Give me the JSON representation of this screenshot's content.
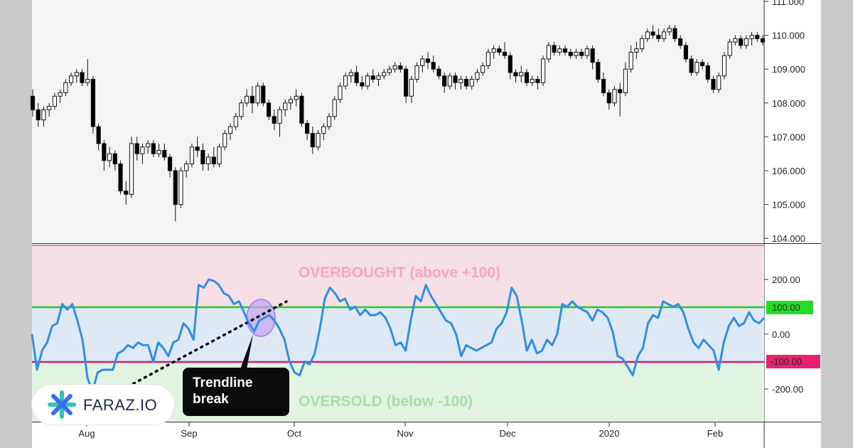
{
  "chart_data": [
    {
      "type": "candlestick",
      "y_ticks": [
        "111.000",
        "110.000",
        "109.000",
        "108.000",
        "107.000",
        "106.000",
        "105.000",
        "104.000"
      ],
      "ylim": [
        104.0,
        111.0
      ],
      "x_ticks": [
        "Aug",
        "Sep",
        "Oct",
        "Nov",
        "Dec",
        "2020",
        "Feb"
      ],
      "candles": [
        [
          108.2,
          108.4,
          107.6,
          107.8
        ],
        [
          107.8,
          108.0,
          107.3,
          107.5
        ],
        [
          107.5,
          107.9,
          107.3,
          107.8
        ],
        [
          107.8,
          108.0,
          107.6,
          107.9
        ],
        [
          107.9,
          108.3,
          107.8,
          108.2
        ],
        [
          108.2,
          108.4,
          108.0,
          108.3
        ],
        [
          108.3,
          108.7,
          108.2,
          108.6
        ],
        [
          108.6,
          108.9,
          108.5,
          108.8
        ],
        [
          108.8,
          109.0,
          108.6,
          108.9
        ],
        [
          108.9,
          109.0,
          108.5,
          108.6
        ],
        [
          108.6,
          109.3,
          108.5,
          108.7
        ],
        [
          108.7,
          108.8,
          107.1,
          107.3
        ],
        [
          107.3,
          107.4,
          106.6,
          106.8
        ],
        [
          106.8,
          106.9,
          106.0,
          106.3
        ],
        [
          106.3,
          106.7,
          106.1,
          106.5
        ],
        [
          106.5,
          106.6,
          106.0,
          106.2
        ],
        [
          106.2,
          106.3,
          105.3,
          105.4
        ],
        [
          105.4,
          105.7,
          105.0,
          105.3
        ],
        [
          105.3,
          107.0,
          105.2,
          106.8
        ],
        [
          106.8,
          107.0,
          106.3,
          106.5
        ],
        [
          106.5,
          106.8,
          106.2,
          106.7
        ],
        [
          106.7,
          106.9,
          106.5,
          106.8
        ],
        [
          106.8,
          106.9,
          106.4,
          106.5
        ],
        [
          106.5,
          106.8,
          106.4,
          106.6
        ],
        [
          106.6,
          106.8,
          106.3,
          106.4
        ],
        [
          106.4,
          106.5,
          105.8,
          106.0
        ],
        [
          106.0,
          106.1,
          104.5,
          105.0
        ],
        [
          105.0,
          106.1,
          104.9,
          106.0
        ],
        [
          106.0,
          106.3,
          105.8,
          106.2
        ],
        [
          106.2,
          106.8,
          106.1,
          106.7
        ],
        [
          106.7,
          107.0,
          106.4,
          106.6
        ],
        [
          106.6,
          106.8,
          106.0,
          106.2
        ],
        [
          106.2,
          106.5,
          106.0,
          106.4
        ],
        [
          106.4,
          106.7,
          106.1,
          106.2
        ],
        [
          106.2,
          106.8,
          106.1,
          106.7
        ],
        [
          106.7,
          107.2,
          106.6,
          107.1
        ],
        [
          107.1,
          107.4,
          106.9,
          107.3
        ],
        [
          107.3,
          107.7,
          107.2,
          107.6
        ],
        [
          107.6,
          108.1,
          107.5,
          108.0
        ],
        [
          108.0,
          108.4,
          107.9,
          108.2
        ],
        [
          108.2,
          108.5,
          107.7,
          108.0
        ],
        [
          108.0,
          108.6,
          107.9,
          108.5
        ],
        [
          108.5,
          108.6,
          107.9,
          108.0
        ],
        [
          108.0,
          108.1,
          107.5,
          107.6
        ],
        [
          107.6,
          107.8,
          107.2,
          107.4
        ],
        [
          107.4,
          107.9,
          107.0,
          107.8
        ],
        [
          107.8,
          108.1,
          107.6,
          108.0
        ],
        [
          108.0,
          108.2,
          107.8,
          108.1
        ],
        [
          108.1,
          108.4,
          107.9,
          108.2
        ],
        [
          108.2,
          108.3,
          107.3,
          107.4
        ],
        [
          107.4,
          107.5,
          106.9,
          107.1
        ],
        [
          107.1,
          107.3,
          106.5,
          106.7
        ],
        [
          106.7,
          107.2,
          106.6,
          107.1
        ],
        [
          107.1,
          107.4,
          106.9,
          107.3
        ],
        [
          107.3,
          107.7,
          107.2,
          107.6
        ],
        [
          107.6,
          108.2,
          107.5,
          108.1
        ],
        [
          108.1,
          108.6,
          108.0,
          108.5
        ],
        [
          108.5,
          108.9,
          108.4,
          108.8
        ],
        [
          108.8,
          109.0,
          108.6,
          108.9
        ],
        [
          108.9,
          109.1,
          108.5,
          108.6
        ],
        [
          108.6,
          108.8,
          108.4,
          108.5
        ],
        [
          108.5,
          108.9,
          108.4,
          108.8
        ],
        [
          108.8,
          109.0,
          108.6,
          108.7
        ],
        [
          108.7,
          108.9,
          108.5,
          108.8
        ],
        [
          108.8,
          109.0,
          108.7,
          108.9
        ],
        [
          108.9,
          109.1,
          108.8,
          109.0
        ],
        [
          109.0,
          109.2,
          108.9,
          109.1
        ],
        [
          109.1,
          109.2,
          108.9,
          109.0
        ],
        [
          109.0,
          109.1,
          108.0,
          108.2
        ],
        [
          108.2,
          108.8,
          108.0,
          108.7
        ],
        [
          108.7,
          109.2,
          108.6,
          109.1
        ],
        [
          109.1,
          109.4,
          108.9,
          109.3
        ],
        [
          109.3,
          109.5,
          109.0,
          109.2
        ],
        [
          109.2,
          109.4,
          108.9,
          109.0
        ],
        [
          109.0,
          109.1,
          108.7,
          108.8
        ],
        [
          108.8,
          108.9,
          108.3,
          108.5
        ],
        [
          108.5,
          108.9,
          108.4,
          108.8
        ],
        [
          108.8,
          108.9,
          108.4,
          108.6
        ],
        [
          108.6,
          108.8,
          108.4,
          108.7
        ],
        [
          108.7,
          108.8,
          108.4,
          108.5
        ],
        [
          108.5,
          108.8,
          108.4,
          108.7
        ],
        [
          108.7,
          109.0,
          108.6,
          108.9
        ],
        [
          108.9,
          109.2,
          108.8,
          109.1
        ],
        [
          109.1,
          109.6,
          109.0,
          109.5
        ],
        [
          109.5,
          109.7,
          109.3,
          109.6
        ],
        [
          109.6,
          109.7,
          109.4,
          109.5
        ],
        [
          109.5,
          109.8,
          109.3,
          109.4
        ],
        [
          109.4,
          109.5,
          108.7,
          108.9
        ],
        [
          108.9,
          109.0,
          108.6,
          108.8
        ],
        [
          108.8,
          109.1,
          108.6,
          108.9
        ],
        [
          108.9,
          109.0,
          108.5,
          108.6
        ],
        [
          108.6,
          108.8,
          108.5,
          108.7
        ],
        [
          108.7,
          108.8,
          108.4,
          108.6
        ],
        [
          108.6,
          109.4,
          108.5,
          109.3
        ],
        [
          109.3,
          109.8,
          109.2,
          109.7
        ],
        [
          109.7,
          109.8,
          109.4,
          109.5
        ],
        [
          109.5,
          109.7,
          109.4,
          109.6
        ],
        [
          109.6,
          109.7,
          109.4,
          109.5
        ],
        [
          109.5,
          109.6,
          109.3,
          109.4
        ],
        [
          109.4,
          109.6,
          109.3,
          109.5
        ],
        [
          109.5,
          109.6,
          109.3,
          109.4
        ],
        [
          109.4,
          109.7,
          109.3,
          109.6
        ],
        [
          109.6,
          109.7,
          109.0,
          109.2
        ],
        [
          109.2,
          109.3,
          108.6,
          108.7
        ],
        [
          108.7,
          108.9,
          108.2,
          108.3
        ],
        [
          108.3,
          108.4,
          107.8,
          108.0
        ],
        [
          108.0,
          108.5,
          107.9,
          108.4
        ],
        [
          108.4,
          108.6,
          107.6,
          108.3
        ],
        [
          108.3,
          109.2,
          108.2,
          109.0
        ],
        [
          109.0,
          109.7,
          108.9,
          109.5
        ],
        [
          109.5,
          109.8,
          109.3,
          109.6
        ],
        [
          109.6,
          110.0,
          109.5,
          109.9
        ],
        [
          109.9,
          110.2,
          109.8,
          110.1
        ],
        [
          110.1,
          110.3,
          109.9,
          110.0
        ],
        [
          110.0,
          110.2,
          109.8,
          109.9
        ],
        [
          109.9,
          110.2,
          109.8,
          110.1
        ],
        [
          110.1,
          110.3,
          110.0,
          110.2
        ],
        [
          110.2,
          110.3,
          109.8,
          109.9
        ],
        [
          109.9,
          110.0,
          109.6,
          109.7
        ],
        [
          109.7,
          109.8,
          109.2,
          109.3
        ],
        [
          109.3,
          109.4,
          108.8,
          108.9
        ],
        [
          108.9,
          109.3,
          108.8,
          109.2
        ],
        [
          109.2,
          109.3,
          109.0,
          109.1
        ],
        [
          109.1,
          109.2,
          108.6,
          108.7
        ],
        [
          108.7,
          108.8,
          108.3,
          108.4
        ],
        [
          108.4,
          108.9,
          108.3,
          108.8
        ],
        [
          108.8,
          109.5,
          108.7,
          109.4
        ],
        [
          109.4,
          109.9,
          109.3,
          109.8
        ],
        [
          109.8,
          110.0,
          109.7,
          109.9
        ],
        [
          109.9,
          110.0,
          109.6,
          109.7
        ],
        [
          109.7,
          110.0,
          109.6,
          109.9
        ],
        [
          109.9,
          110.1,
          109.7,
          110.0
        ],
        [
          110.0,
          110.1,
          109.8,
          109.9
        ],
        [
          109.9,
          110.0,
          109.7,
          109.8
        ]
      ]
    },
    {
      "type": "line",
      "y_ticks": [
        "200.00",
        "0.00",
        "-200.00"
      ],
      "ylim": [
        -325,
        325
      ],
      "x_ticks": [
        "Aug",
        "Sep",
        "Oct",
        "Nov",
        "Dec",
        "2020",
        "Feb"
      ],
      "levels": [
        {
          "label": "100.00",
          "value": 100,
          "color": "#22cc22"
        },
        {
          "label": "-100.00",
          "value": -100,
          "color": "#cc1f7a"
        }
      ],
      "series": [
        {
          "values": [
            0,
            -130,
            -60,
            -30,
            30,
            40,
            110,
            90,
            110,
            50,
            -20,
            -160,
            -210,
            -140,
            -130,
            -130,
            -130,
            -70,
            -60,
            -40,
            -50,
            -30,
            -40,
            -40,
            -100,
            -30,
            -50,
            -80,
            -30,
            -20,
            40,
            20,
            -20,
            180,
            170,
            200,
            195,
            180,
            150,
            140,
            110,
            120,
            80,
            40,
            10,
            50,
            60,
            70,
            50,
            20,
            -20,
            -100,
            -140,
            -150,
            -100,
            -110,
            -70,
            20,
            130,
            170,
            150,
            120,
            130,
            90,
            100,
            70,
            90,
            70,
            70,
            80,
            60,
            20,
            -40,
            -30,
            -60,
            50,
            140,
            120,
            180,
            140,
            110,
            80,
            50,
            40,
            0,
            -80,
            -40,
            -50,
            -60,
            -50,
            -40,
            -30,
            20,
            40,
            80,
            170,
            140,
            50,
            -60,
            -20,
            -70,
            -60,
            -20,
            -40,
            0,
            110,
            100,
            120,
            100,
            90,
            80,
            50,
            90,
            80,
            60,
            10,
            -80,
            -90,
            -120,
            -150,
            -80,
            -50,
            40,
            70,
            60,
            120,
            110,
            100,
            110,
            80,
            20,
            -30,
            -50,
            -20,
            -40,
            -60,
            -130,
            -30,
            30,
            60,
            30,
            40,
            80,
            50,
            40,
            60
          ]
        }
      ],
      "annotations": [
        "OVERBOUGHT (above  +100)",
        "OVERSOLD (below -100)"
      ]
    }
  ],
  "annotation": {
    "text": "Trendline\nbreak"
  },
  "logo": {
    "text": "FARAZ.IO",
    "brand_colors": [
      "#2ec4b6",
      "#3a6ee8"
    ]
  },
  "colors": {
    "overbought_zone": "#f7dfe8",
    "neutral_zone": "#dfe9f5",
    "oversold_zone": "#e1f3e1",
    "line": "#2f8ee6",
    "highlight": "#c9a4f4"
  }
}
